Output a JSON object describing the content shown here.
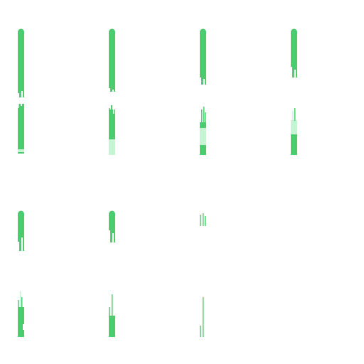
{
  "sprite_sheet": {
    "colors": {
      "background": "#ffffff",
      "fill": "#4ccb71",
      "fill_light": "#c6f5d3",
      "fill_dark": "#3fb864"
    },
    "grid": {
      "columns": 4,
      "rows": 4,
      "frame_count": 14
    },
    "frames": [
      {
        "label": "",
        "kind": "full",
        "level": 1.0
      },
      {
        "label": "",
        "kind": "full",
        "level": 0.96
      },
      {
        "label": "",
        "kind": "full",
        "level": 0.88
      },
      {
        "label": "",
        "kind": "full",
        "level": 0.8
      },
      {
        "label": "",
        "kind": "drain",
        "level": 0.92
      },
      {
        "label": "",
        "kind": "drain",
        "level": 0.6
      },
      {
        "label": "",
        "kind": "drain",
        "level": 0.5
      },
      {
        "label": "",
        "kind": "drain",
        "level": 0.45
      },
      {
        "label": "",
        "kind": "short",
        "level": 0.75
      },
      {
        "label": "",
        "kind": "short",
        "level": 0.55
      },
      {
        "label": "",
        "kind": "short",
        "level": 0.25
      },
      {
        "label": "",
        "kind": "bottom",
        "level": 0.8
      },
      {
        "label": "",
        "kind": "bottom",
        "level": 0.55
      },
      {
        "label": "",
        "kind": "bottom",
        "level": 0.35
      }
    ]
  }
}
